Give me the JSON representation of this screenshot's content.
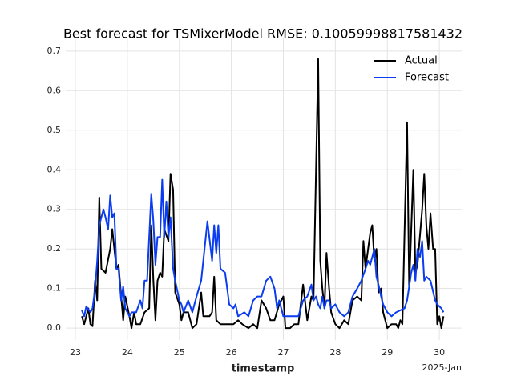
{
  "chart_data": {
    "type": "line",
    "title": "Best forecast for TSMixerModel RMSE: 0.10059998817581432",
    "x_label": "timestamp",
    "x_offset_label": "2025-Jan",
    "xlim": [
      22.815,
      30.43
    ],
    "xticks": [
      23,
      24,
      25,
      26,
      27,
      28,
      29,
      30
    ],
    "ylim": [
      -0.03,
      0.732
    ],
    "yticks": [
      {
        "value": 0,
        "label": "0.0"
      },
      0.1,
      0.2,
      0.3,
      0.4,
      0.5,
      0.6,
      0.7
    ],
    "grid": true,
    "legend": "upper right",
    "series": [
      {
        "name": "Actual",
        "color": "#000000",
        "x": [
          23.125,
          23.17,
          23.25,
          23.29,
          23.33,
          23.38,
          23.42,
          23.46,
          23.5,
          23.58,
          23.67,
          23.71,
          23.79,
          23.83,
          23.92,
          23.96,
          24.04,
          24.08,
          24.13,
          24.17,
          24.25,
          24.33,
          24.42,
          24.46,
          24.5,
          24.54,
          24.58,
          24.63,
          24.67,
          24.71,
          24.79,
          24.83,
          24.88,
          24.92,
          25.0,
          25.04,
          25.08,
          25.17,
          25.25,
          25.33,
          25.42,
          25.46,
          25.58,
          25.63,
          25.67,
          25.71,
          25.79,
          25.88,
          25.96,
          26.04,
          26.13,
          26.21,
          26.33,
          26.42,
          26.5,
          26.58,
          26.67,
          26.75,
          26.83,
          26.92,
          27.0,
          27.04,
          27.13,
          27.21,
          27.29,
          27.38,
          27.46,
          27.54,
          27.58,
          27.67,
          27.71,
          27.75,
          27.79,
          27.83,
          27.88,
          27.92,
          28.0,
          28.08,
          28.17,
          28.25,
          28.33,
          28.42,
          28.5,
          28.54,
          28.58,
          28.67,
          28.71,
          28.75,
          28.79,
          28.83,
          28.88,
          28.92,
          29.0,
          29.08,
          29.17,
          29.21,
          29.25,
          29.29,
          29.38,
          29.42,
          29.5,
          29.54,
          29.58,
          29.67,
          29.71,
          29.75,
          29.79,
          29.83,
          29.88,
          29.92,
          29.96,
          30.0,
          30.04,
          30.08
        ],
        "values": [
          0.03,
          0.01,
          0.05,
          0.01,
          0.005,
          0.12,
          0.07,
          0.33,
          0.15,
          0.14,
          0.2,
          0.25,
          0.15,
          0.16,
          0.02,
          0.08,
          0.03,
          0.0,
          0.04,
          0.01,
          0.01,
          0.04,
          0.05,
          0.26,
          0.12,
          0.02,
          0.12,
          0.14,
          0.13,
          0.25,
          0.22,
          0.39,
          0.35,
          0.09,
          0.06,
          0.02,
          0.04,
          0.04,
          0.0,
          0.01,
          0.09,
          0.03,
          0.03,
          0.04,
          0.13,
          0.02,
          0.01,
          0.01,
          0.01,
          0.01,
          0.02,
          0.01,
          0.0,
          0.01,
          0.0,
          0.07,
          0.05,
          0.02,
          0.02,
          0.06,
          0.08,
          0.0,
          0.0,
          0.01,
          0.01,
          0.11,
          0.02,
          0.08,
          0.07,
          0.68,
          0.17,
          0.1,
          0.05,
          0.19,
          0.1,
          0.04,
          0.01,
          0.0,
          0.02,
          0.01,
          0.07,
          0.08,
          0.07,
          0.22,
          0.15,
          0.24,
          0.26,
          0.17,
          0.2,
          0.09,
          0.1,
          0.04,
          0.0,
          0.01,
          0.01,
          0.0,
          0.02,
          0.01,
          0.52,
          0.1,
          0.4,
          0.14,
          0.16,
          0.3,
          0.39,
          0.26,
          0.2,
          0.29,
          0.2,
          0.2,
          0.01,
          0.03,
          0.0,
          0.03
        ]
      },
      {
        "name": "Forecast",
        "color": "#0a3cf0",
        "x": [
          23.125,
          23.17,
          23.21,
          23.29,
          23.33,
          23.38,
          23.42,
          23.46,
          23.54,
          23.58,
          23.63,
          23.67,
          23.71,
          23.75,
          23.79,
          23.83,
          23.88,
          23.92,
          23.96,
          24.04,
          24.08,
          24.17,
          24.25,
          24.29,
          24.33,
          24.38,
          24.46,
          24.5,
          24.54,
          24.58,
          24.63,
          24.67,
          24.71,
          24.75,
          24.79,
          24.83,
          24.88,
          24.92,
          25.0,
          25.04,
          25.08,
          25.17,
          25.25,
          25.33,
          25.42,
          25.54,
          25.63,
          25.67,
          25.71,
          25.75,
          25.79,
          25.88,
          25.96,
          26.04,
          26.08,
          26.13,
          26.25,
          26.33,
          26.42,
          26.5,
          26.58,
          26.67,
          26.75,
          26.83,
          26.88,
          26.92,
          27.0,
          27.13,
          27.21,
          27.29,
          27.38,
          27.46,
          27.54,
          27.58,
          27.63,
          27.67,
          27.71,
          27.75,
          27.79,
          27.83,
          27.88,
          27.92,
          28.0,
          28.08,
          28.17,
          28.25,
          28.33,
          28.42,
          28.5,
          28.58,
          28.63,
          28.67,
          28.75,
          28.79,
          28.83,
          28.88,
          28.92,
          29.0,
          29.08,
          29.17,
          29.25,
          29.33,
          29.38,
          29.46,
          29.5,
          29.54,
          29.58,
          29.63,
          29.67,
          29.71,
          29.75,
          29.83,
          29.92,
          29.96,
          30.04,
          30.08
        ],
        "values": [
          0.045,
          0.03,
          0.055,
          0.04,
          0.05,
          0.1,
          0.17,
          0.26,
          0.3,
          0.28,
          0.25,
          0.335,
          0.28,
          0.29,
          0.15,
          0.15,
          0.07,
          0.105,
          0.05,
          0.03,
          0.04,
          0.04,
          0.07,
          0.05,
          0.12,
          0.12,
          0.34,
          0.27,
          0.16,
          0.23,
          0.23,
          0.375,
          0.23,
          0.32,
          0.23,
          0.28,
          0.15,
          0.12,
          0.07,
          0.06,
          0.04,
          0.07,
          0.04,
          0.08,
          0.12,
          0.27,
          0.17,
          0.26,
          0.19,
          0.26,
          0.15,
          0.14,
          0.06,
          0.05,
          0.06,
          0.03,
          0.04,
          0.03,
          0.07,
          0.08,
          0.08,
          0.12,
          0.13,
          0.1,
          0.05,
          0.07,
          0.03,
          0.03,
          0.03,
          0.03,
          0.07,
          0.08,
          0.11,
          0.07,
          0.08,
          0.06,
          0.05,
          0.08,
          0.05,
          0.07,
          0.07,
          0.05,
          0.06,
          0.04,
          0.03,
          0.04,
          0.08,
          0.1,
          0.12,
          0.15,
          0.17,
          0.16,
          0.2,
          0.13,
          0.11,
          0.08,
          0.06,
          0.04,
          0.03,
          0.04,
          0.045,
          0.05,
          0.07,
          0.14,
          0.16,
          0.12,
          0.2,
          0.18,
          0.22,
          0.12,
          0.13,
          0.12,
          0.07,
          0.06,
          0.05,
          0.04
        ]
      }
    ]
  }
}
